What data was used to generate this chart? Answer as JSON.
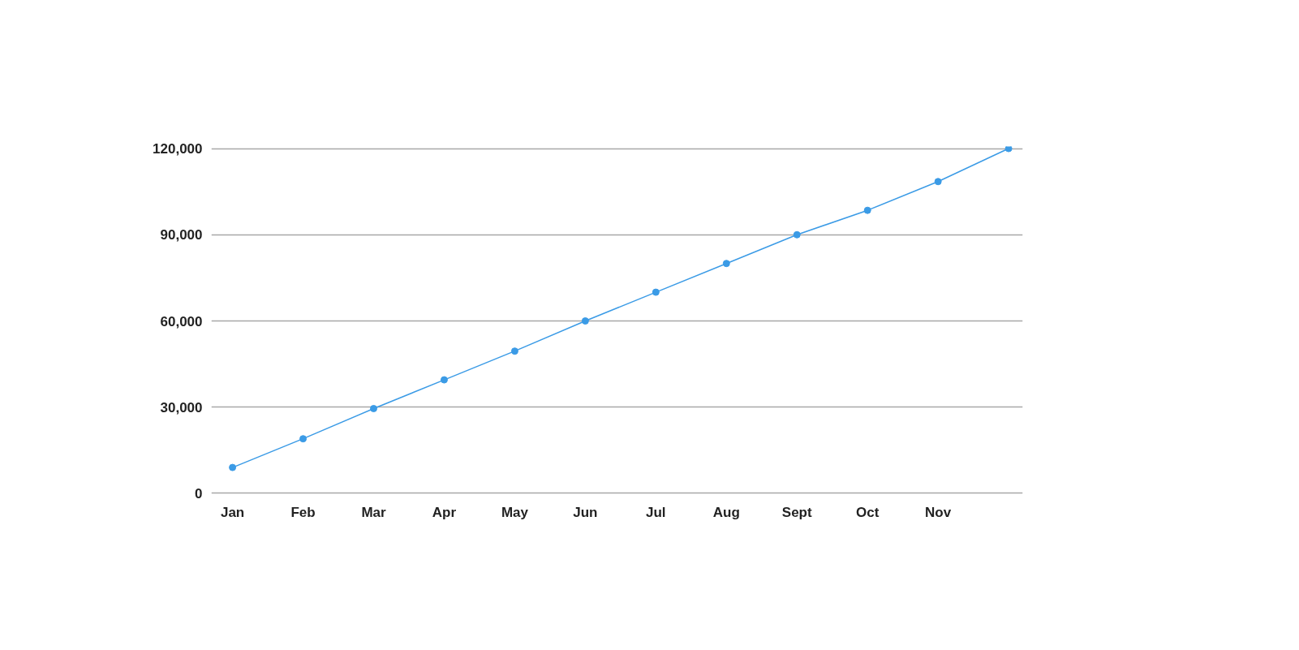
{
  "chart_data": {
    "type": "line",
    "categories": [
      "Jan",
      "Feb",
      "Mar",
      "Apr",
      "May",
      "Jun",
      "Jul",
      "Aug",
      "Sept",
      "Oct",
      "Nov",
      null
    ],
    "series": [
      {
        "color": "#3b9be6",
        "values": [
          9000,
          19000,
          29500,
          39500,
          49500,
          60000,
          70000,
          80000,
          90000,
          98500,
          108500,
          120000
        ]
      }
    ],
    "ylim": [
      0,
      120000
    ],
    "yticks": [
      {
        "value": 0,
        "label": "0"
      },
      {
        "value": 30000,
        "label": "30,000"
      },
      {
        "value": 60000,
        "label": "60,000"
      },
      {
        "value": 90000,
        "label": "90,000"
      },
      {
        "value": 120000,
        "label": "120,000"
      }
    ],
    "grid": "y",
    "marker": "circle",
    "line_style": "solid"
  }
}
